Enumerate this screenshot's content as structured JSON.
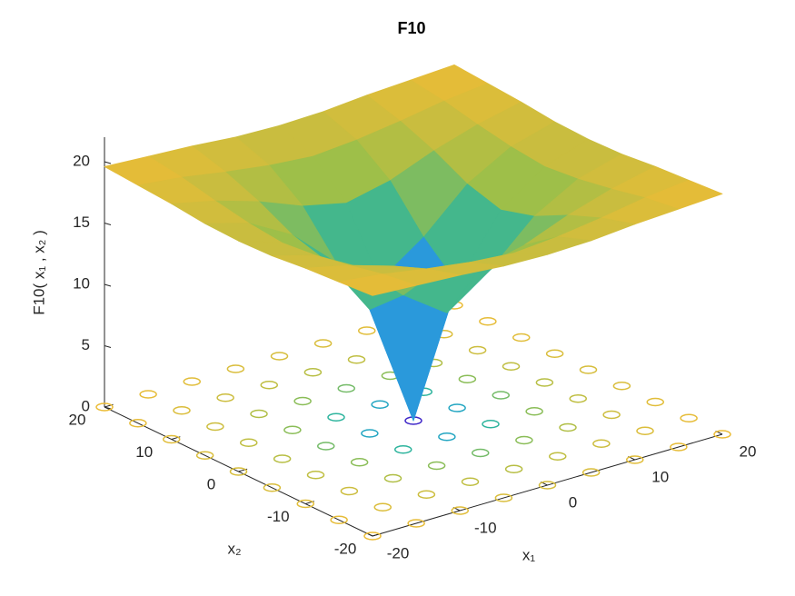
{
  "chart_data": {
    "type": "surface",
    "title": "F10",
    "xlabel": "x₁",
    "ylabel": "x₂",
    "zlabel": "F10( x₁ , x₂ )",
    "x": [
      -20,
      -15,
      -10,
      -5,
      0,
      5,
      10,
      15,
      20
    ],
    "y": [
      -20,
      -15,
      -10,
      -5,
      0,
      5,
      10,
      15,
      20
    ],
    "z": [
      [
        19.6,
        19.4,
        19.2,
        18.9,
        18.8,
        18.9,
        19.2,
        19.4,
        19.6
      ],
      [
        19.4,
        19.0,
        18.4,
        17.9,
        17.6,
        17.9,
        18.4,
        19.0,
        19.4
      ],
      [
        19.2,
        18.4,
        17.3,
        15.9,
        15.1,
        15.9,
        17.3,
        18.4,
        19.2
      ],
      [
        18.9,
        17.9,
        15.9,
        12.6,
        10.1,
        12.6,
        15.9,
        17.9,
        18.9
      ],
      [
        18.8,
        17.6,
        15.1,
        10.1,
        0,
        10.1,
        15.1,
        17.6,
        18.8
      ],
      [
        18.9,
        17.9,
        15.9,
        12.6,
        10.1,
        12.6,
        15.9,
        17.9,
        18.9
      ],
      [
        19.2,
        18.4,
        17.3,
        15.9,
        15.1,
        15.9,
        17.3,
        18.4,
        19.2
      ],
      [
        19.4,
        19.0,
        18.4,
        17.9,
        17.6,
        17.9,
        18.4,
        19.0,
        19.4
      ],
      [
        19.6,
        19.4,
        19.2,
        18.9,
        18.8,
        18.9,
        19.2,
        19.4,
        19.6
      ]
    ],
    "xlim": [
      -20,
      20
    ],
    "ylim": [
      -20,
      20
    ],
    "zlim": [
      0,
      22
    ],
    "xticks": [
      -20,
      -10,
      0,
      10,
      20
    ],
    "yticks": [
      -20,
      -10,
      0,
      10,
      20
    ],
    "zticks": [
      0,
      5,
      10,
      15,
      20
    ],
    "colormap": "parula",
    "floor_contour": true,
    "grid": false
  }
}
